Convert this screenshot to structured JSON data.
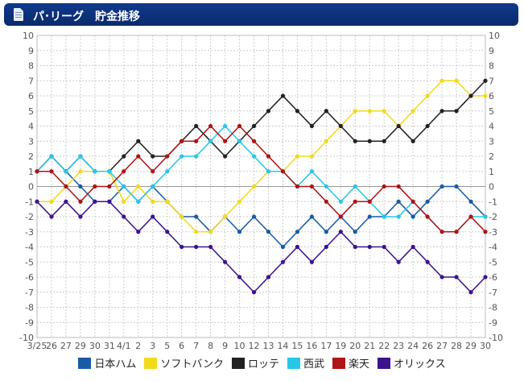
{
  "header": {
    "title": "パ･リーグ　貯金推移"
  },
  "chart_data": {
    "type": "line",
    "title": "パ･リーグ　貯金推移",
    "categories": [
      "3/25",
      "26",
      "27",
      "29",
      "30",
      "31",
      "4/1",
      "2",
      "3",
      "5",
      "6",
      "7",
      "8",
      "9",
      "10",
      "12",
      "13",
      "14",
      "15",
      "16",
      "17",
      "19",
      "20",
      "21",
      "22",
      "23",
      "24",
      "26",
      "27",
      "28",
      "29",
      "30"
    ],
    "ylim": [
      -10,
      10
    ],
    "yticks": [
      10,
      9,
      8,
      7,
      6,
      5,
      4,
      3,
      2,
      1,
      0,
      -1,
      -2,
      -3,
      -4,
      -5,
      -6,
      -7,
      -8,
      -9,
      -10
    ],
    "grid": true,
    "legend_position": "bottom",
    "series": [
      {
        "name": "日本ハム",
        "color": "#1a5ba6",
        "values": [
          1,
          2,
          1,
          0,
          -1,
          -1,
          0,
          -1,
          0,
          -1,
          -2,
          -2,
          -3,
          -2,
          -3,
          -2,
          -3,
          -4,
          -3,
          -2,
          -3,
          -2,
          -3,
          -2,
          -2,
          -1,
          -2,
          -1,
          0,
          0,
          -1,
          -2
        ]
      },
      {
        "name": "ソフトバンク",
        "color": "#f2da1c",
        "values": [
          -1,
          -1,
          0,
          1,
          1,
          1,
          -1,
          0,
          -1,
          -1,
          -2,
          -3,
          -3,
          -2,
          -1,
          0,
          1,
          1,
          2,
          2,
          3,
          4,
          5,
          5,
          5,
          4,
          5,
          6,
          7,
          7,
          6,
          6
        ]
      },
      {
        "name": "ロッテ",
        "color": "#222222",
        "values": [
          1,
          2,
          1,
          2,
          1,
          1,
          2,
          3,
          2,
          2,
          3,
          4,
          3,
          2,
          3,
          4,
          5,
          6,
          5,
          4,
          5,
          4,
          3,
          3,
          3,
          4,
          3,
          4,
          5,
          5,
          6,
          7
        ]
      },
      {
        "name": "西武",
        "color": "#29c6e8",
        "values": [
          1,
          2,
          1,
          2,
          1,
          1,
          0,
          -1,
          0,
          1,
          2,
          2,
          3,
          4,
          3,
          2,
          1,
          1,
          0,
          1,
          0,
          -1,
          0,
          -1,
          -2,
          -2,
          -1,
          -2,
          -3,
          -3,
          -2,
          -2
        ]
      },
      {
        "name": "楽天",
        "color": "#b01414",
        "values": [
          1,
          1,
          0,
          -1,
          0,
          0,
          1,
          2,
          1,
          2,
          3,
          3,
          4,
          3,
          4,
          3,
          2,
          1,
          0,
          0,
          -1,
          -2,
          -1,
          -1,
          0,
          0,
          -1,
          -2,
          -3,
          -3,
          -2,
          -3
        ]
      },
      {
        "name": "オリックス",
        "color": "#3d1390",
        "values": [
          -1,
          -2,
          -1,
          -2,
          -1,
          -1,
          -2,
          -3,
          -2,
          -3,
          -4,
          -4,
          -4,
          -5,
          -6,
          -7,
          -6,
          -5,
          -4,
          -5,
          -4,
          -3,
          -4,
          -4,
          -4,
          -5,
          -4,
          -5,
          -6,
          -6,
          -7,
          -6
        ]
      }
    ]
  }
}
